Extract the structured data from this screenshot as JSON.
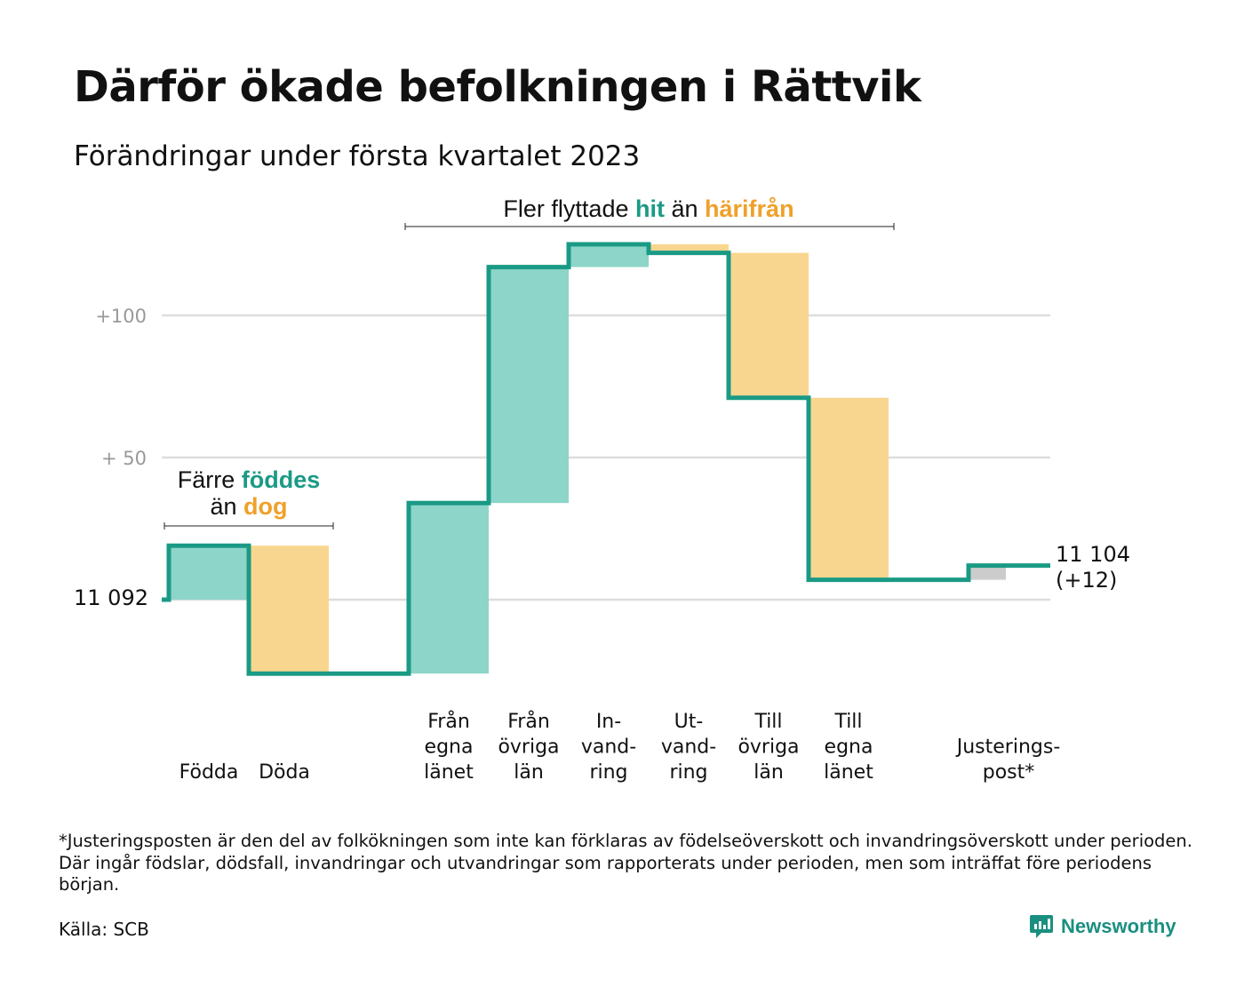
{
  "title": "Därför ökade befolkningen i Rättvik",
  "subtitle": "Förändringar under första kvartalet 2023",
  "colors": {
    "increase": "#8dd5c9",
    "decrease": "#f9d68f",
    "adjustment": "#cccccc",
    "line": "#1a9a85",
    "highlight_green": "#1a9a85",
    "highlight_orange": "#f0a02a",
    "grid": "#dddddd"
  },
  "annotations": {
    "births": {
      "line1_pre": "Färre ",
      "line1_hl": "föddes",
      "line2_pre": "än ",
      "line2_hl": "dog"
    },
    "migration": {
      "pre": "Fler flyttade ",
      "hl1": "hit",
      "mid": " än ",
      "hl2": "härifrån"
    }
  },
  "end_label": {
    "line1": "11 104",
    "line2": "(+12)"
  },
  "chart_data": {
    "type": "waterfall",
    "start_value": 11092,
    "start_label": "11 092",
    "end_value": 11104,
    "ylim": [
      11066,
      11133
    ],
    "grid": true,
    "y_ticks": [
      {
        "value": 11092,
        "label": ""
      },
      {
        "value": 11142,
        "label": "+ 50"
      },
      {
        "value": 11192,
        "label": "+100"
      }
    ],
    "categories": [
      {
        "label": [
          "Födda"
        ],
        "delta": 19,
        "kind": "increase"
      },
      {
        "label": [
          "Döda"
        ],
        "delta": -45,
        "kind": "decrease"
      },
      {
        "label": [
          ""
        ],
        "delta": 0,
        "kind": "gap"
      },
      {
        "label": [
          "Från",
          "egna",
          "länet"
        ],
        "delta": 60,
        "kind": "increase"
      },
      {
        "label": [
          "Från",
          "övriga",
          "län"
        ],
        "delta": 83,
        "kind": "increase"
      },
      {
        "label": [
          "In-",
          "vand-",
          "ring"
        ],
        "delta": 8,
        "kind": "increase"
      },
      {
        "label": [
          "Ut-",
          "vand-",
          "ring"
        ],
        "delta": -3,
        "kind": "decrease"
      },
      {
        "label": [
          "Till",
          "övriga",
          "län"
        ],
        "delta": -51,
        "kind": "decrease"
      },
      {
        "label": [
          "Till",
          "egna",
          "länet"
        ],
        "delta": -64,
        "kind": "decrease"
      },
      {
        "label": [
          ""
        ],
        "delta": 0,
        "kind": "gap"
      },
      {
        "label": [
          "Justerings-",
          "post*"
        ],
        "delta": 5,
        "kind": "adjustment"
      }
    ]
  },
  "footnote": "*Justeringsposten är den del av folkökningen som inte kan förklaras av födelseöverskott och invandringsöverskott under perioden. Där ingår födslar, dödsfall, invandringar och utvandringar som rapporterats under perioden, men som inträffat före periodens början.",
  "source": "Källa: SCB",
  "brand": "Newsworthy"
}
